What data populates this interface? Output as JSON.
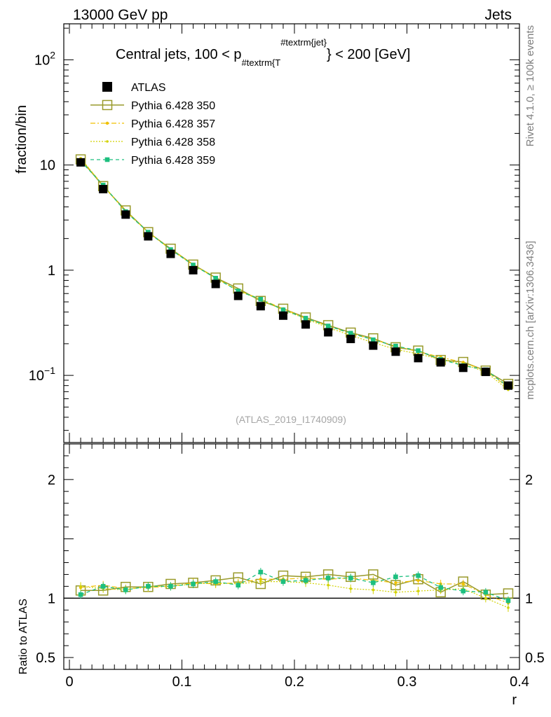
{
  "header": {
    "left": "13000 GeV pp",
    "right": "Jets"
  },
  "plot_title": {
    "prefix": "Central jets, 100 < p",
    "sub": "#textrm{T",
    "sup": "#textrm{jet}",
    "suffix": "} < 200 [GeV]"
  },
  "side_labels": {
    "rivet": "Rivet 4.1.0, ≥ 100k events",
    "mcplots": "mcplots.cern.ch [arXiv:1306.3436]"
  },
  "analysis_id": "(ATLAS_2019_I1740909)",
  "colors": {
    "atlas": "#000000",
    "p350": "#999a2b",
    "p357": "#f0c000",
    "p358": "#d2d200",
    "p359": "#1dbf7f"
  },
  "chart_data": [
    {
      "type": "scatter",
      "panel": "main",
      "ylabel": "fraction/bin",
      "yscale": "log",
      "ylim": [
        0.023,
        220
      ],
      "xlim": [
        -0.005,
        0.4
      ],
      "y_ticks": [
        {
          "label": "10",
          "sup": "2",
          "value": 100
        },
        {
          "label": "10",
          "sup": "",
          "value": 10
        },
        {
          "label": "1",
          "sup": "",
          "value": 1
        },
        {
          "label": "10",
          "sup": "−1",
          "value": 0.1
        }
      ],
      "x": [
        0.01,
        0.03,
        0.05,
        0.07,
        0.09,
        0.11,
        0.13,
        0.15,
        0.17,
        0.19,
        0.21,
        0.23,
        0.25,
        0.27,
        0.29,
        0.31,
        0.33,
        0.35,
        0.37,
        0.39
      ],
      "legend": [
        {
          "key": "atlas",
          "label": "ATLAS"
        },
        {
          "key": "p350",
          "label": "Pythia 6.428 350"
        },
        {
          "key": "p357",
          "label": "Pythia 6.428 357"
        },
        {
          "key": "p358",
          "label": "Pythia 6.428 358"
        },
        {
          "key": "p359",
          "label": "Pythia 6.428 359"
        }
      ],
      "series": [
        {
          "key": "atlas",
          "name": "ATLAS",
          "values": [
            10.6,
            5.9,
            3.38,
            2.1,
            1.43,
            1.0,
            0.74,
            0.57,
            0.455,
            0.37,
            0.305,
            0.257,
            0.222,
            0.192,
            0.168,
            0.146,
            0.133,
            0.118,
            0.108,
            0.08
          ]
        },
        {
          "key": "p350",
          "name": "Pythia 6.428 350",
          "values": [
            11.3,
            6.3,
            3.7,
            2.3,
            1.6,
            1.13,
            0.85,
            0.67,
            0.51,
            0.43,
            0.355,
            0.3,
            0.255,
            0.225,
            0.185,
            0.172,
            0.14,
            0.134,
            0.111,
            0.083
          ]
        },
        {
          "key": "p357",
          "name": "Pythia 6.428 357",
          "values": [
            11.5,
            6.4,
            3.65,
            2.3,
            1.58,
            1.14,
            0.84,
            0.645,
            0.53,
            0.43,
            0.35,
            0.295,
            0.25,
            0.22,
            0.19,
            0.168,
            0.149,
            0.133,
            0.111,
            0.077
          ]
        },
        {
          "key": "p358",
          "name": "Pythia 6.428 358",
          "values": [
            11.6,
            6.35,
            3.6,
            2.3,
            1.57,
            1.12,
            0.84,
            0.64,
            0.52,
            0.42,
            0.345,
            0.285,
            0.24,
            0.205,
            0.177,
            0.16,
            0.142,
            0.128,
            0.108,
            0.073
          ]
        },
        {
          "key": "p359",
          "name": "Pythia 6.428 359",
          "values": [
            10.9,
            6.45,
            3.6,
            2.3,
            1.57,
            1.12,
            0.84,
            0.635,
            0.53,
            0.42,
            0.35,
            0.295,
            0.252,
            0.218,
            0.19,
            0.172,
            0.142,
            0.124,
            0.113,
            0.078
          ]
        }
      ],
      "xlabel": ""
    },
    {
      "type": "line",
      "panel": "ratio",
      "ylabel": "Ratio to ATLAS",
      "xlabel": "r",
      "ylim": [
        0.4,
        2.3
      ],
      "xlim": [
        -0.005,
        0.4
      ],
      "reference_line": 1,
      "y_ticks": [
        {
          "label": "0.5",
          "value": 0.5
        },
        {
          "label": "1",
          "value": 1
        },
        {
          "label": "2",
          "value": 2
        }
      ],
      "x_ticks": [
        {
          "label": "0",
          "value": 0
        },
        {
          "label": "0.1",
          "value": 0.1
        },
        {
          "label": "0.2",
          "value": 0.2
        },
        {
          "label": "0.3",
          "value": 0.3
        },
        {
          "label": "0.4",
          "value": 0.4
        }
      ],
      "x": [
        0.01,
        0.03,
        0.05,
        0.07,
        0.09,
        0.11,
        0.13,
        0.15,
        0.17,
        0.19,
        0.21,
        0.23,
        0.25,
        0.27,
        0.29,
        0.31,
        0.33,
        0.35,
        0.37,
        0.39
      ],
      "series": [
        {
          "key": "p350",
          "name": "Pythia 6.428 350",
          "values": [
            1.065,
            1.065,
            1.095,
            1.095,
            1.12,
            1.13,
            1.15,
            1.175,
            1.12,
            1.19,
            1.18,
            1.2,
            1.18,
            1.2,
            1.11,
            1.16,
            1.05,
            1.14,
            1.03,
            1.04
          ]
        },
        {
          "key": "p357",
          "name": "Pythia 6.428 357",
          "values": [
            1.09,
            1.11,
            1.08,
            1.09,
            1.1,
            1.13,
            1.12,
            1.13,
            1.16,
            1.16,
            1.17,
            1.16,
            1.17,
            1.15,
            1.13,
            1.15,
            1.12,
            1.12,
            1.03,
            0.96
          ]
        },
        {
          "key": "p358",
          "name": "Pythia 6.428 358",
          "values": [
            1.1,
            1.08,
            1.07,
            1.1,
            1.1,
            1.12,
            1.13,
            1.12,
            1.14,
            1.14,
            1.13,
            1.11,
            1.08,
            1.07,
            1.05,
            1.06,
            1.07,
            1.08,
            1.0,
            0.92
          ]
        },
        {
          "key": "p359",
          "name": "Pythia 6.428 359",
          "values": [
            1.03,
            1.1,
            1.07,
            1.1,
            1.1,
            1.12,
            1.14,
            1.11,
            1.22,
            1.14,
            1.15,
            1.17,
            1.17,
            1.13,
            1.18,
            1.19,
            1.09,
            1.06,
            1.05,
            0.98
          ]
        }
      ]
    }
  ]
}
